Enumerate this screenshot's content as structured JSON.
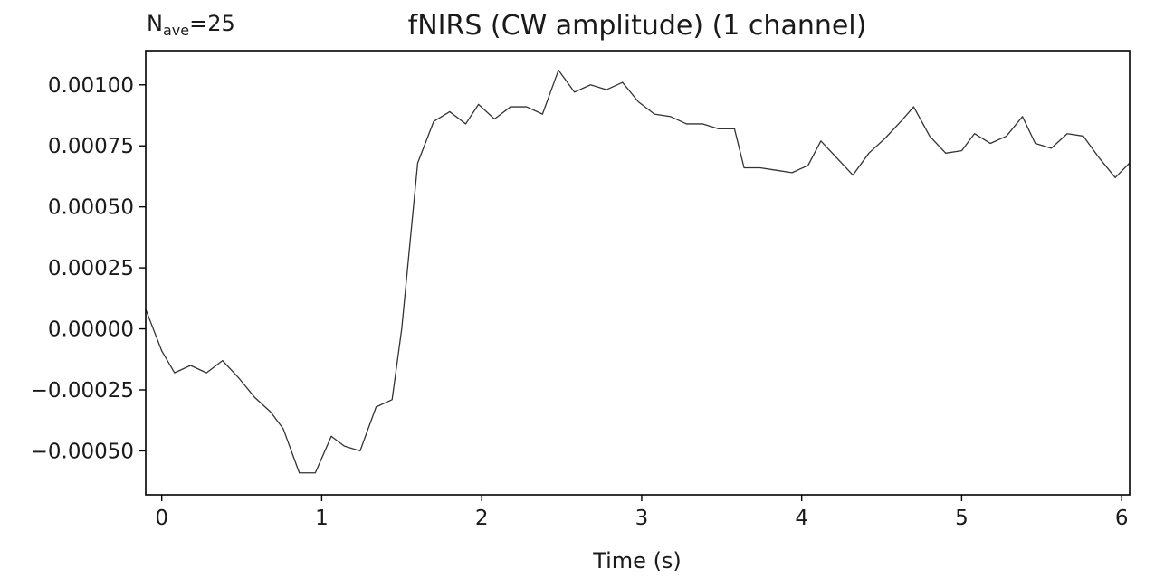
{
  "chart_data": {
    "type": "line",
    "title": "fNIRS (CW amplitude) (1 channel)",
    "annotation": {
      "prefix": "N",
      "subscript": "ave",
      "suffix": "=25"
    },
    "xlabel": "Time (s)",
    "ylabel": "",
    "xlim": [
      -0.1,
      6.05
    ],
    "ylim": [
      -0.00068,
      0.00114
    ],
    "xticks": [
      0,
      1,
      2,
      3,
      4,
      5,
      6
    ],
    "xtick_labels": [
      "0",
      "1",
      "2",
      "3",
      "4",
      "5",
      "6"
    ],
    "yticks": [
      -0.0005,
      -0.00025,
      0.0,
      0.00025,
      0.0005,
      0.00075,
      0.001
    ],
    "ytick_labels": [
      "−0.00050",
      "−0.00025",
      "0.00000",
      "0.00025",
      "0.00050",
      "0.00075",
      "0.00100"
    ],
    "grid": false,
    "legend": false,
    "series": [
      {
        "color": "#333333",
        "x": [
          -0.1,
          0.0,
          0.08,
          0.18,
          0.28,
          0.38,
          0.48,
          0.58,
          0.68,
          0.76,
          0.86,
          0.96,
          1.06,
          1.14,
          1.24,
          1.34,
          1.44,
          1.5,
          1.6,
          1.7,
          1.8,
          1.9,
          1.98,
          2.08,
          2.18,
          2.28,
          2.38,
          2.48,
          2.58,
          2.68,
          2.78,
          2.88,
          2.98,
          3.08,
          3.18,
          3.28,
          3.38,
          3.48,
          3.58,
          3.64,
          3.74,
          3.84,
          3.94,
          4.04,
          4.12,
          4.22,
          4.32,
          4.42,
          4.52,
          4.62,
          4.7,
          4.8,
          4.9,
          5.0,
          5.08,
          5.18,
          5.28,
          5.38,
          5.46,
          5.56,
          5.66,
          5.76,
          5.86,
          5.96,
          6.05
        ],
        "y": [
          8e-05,
          -9e-05,
          -0.00018,
          -0.00015,
          -0.00018,
          -0.00013,
          -0.0002,
          -0.00028,
          -0.00034,
          -0.00041,
          -0.00059,
          -0.00059,
          -0.00044,
          -0.00048,
          -0.0005,
          -0.00032,
          -0.00029,
          0.0,
          0.00068,
          0.00085,
          0.00089,
          0.00084,
          0.00092,
          0.00086,
          0.00091,
          0.00091,
          0.00088,
          0.00106,
          0.00097,
          0.001,
          0.00098,
          0.00101,
          0.00093,
          0.00088,
          0.00087,
          0.00084,
          0.00084,
          0.00082,
          0.00082,
          0.00066,
          0.00066,
          0.00065,
          0.00064,
          0.00067,
          0.00077,
          0.0007,
          0.00063,
          0.00072,
          0.00078,
          0.00085,
          0.00091,
          0.00079,
          0.00072,
          0.00073,
          0.0008,
          0.00076,
          0.00079,
          0.00087,
          0.00076,
          0.00074,
          0.0008,
          0.00079,
          0.0007,
          0.00062,
          0.00068
        ]
      }
    ]
  }
}
